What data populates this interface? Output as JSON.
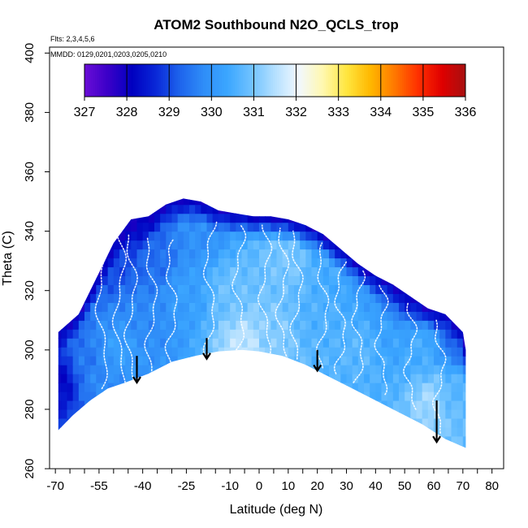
{
  "chart_data": {
    "type": "heatmap",
    "title": "ATOM2 Southbound N2O_QCLS_trop",
    "flights_note": "Flts: 2,3,4,5,6",
    "dates_note": "MMDD: 0129,0201,0203,0205,0210",
    "xlabel": "Latitude (deg N)",
    "ylabel": "Theta (C)",
    "xlim": [
      -72,
      84
    ],
    "ylim": [
      260,
      402
    ],
    "x_ticks_minor": [
      -70,
      -65,
      -60,
      -55,
      -50,
      -45,
      -40,
      -35,
      -30,
      -25,
      -20,
      -15,
      -10,
      -5,
      0,
      5,
      10,
      15,
      20,
      25,
      30,
      35,
      40,
      45,
      50,
      55,
      60,
      65,
      70,
      75,
      80
    ],
    "x_tick_labels": [
      "-70",
      "-55",
      "-40",
      "-25",
      "-10",
      "0",
      "10",
      "20",
      "30",
      "40",
      "50",
      "60",
      "70",
      "80"
    ],
    "x_tick_label_values": [
      -70,
      -55,
      -40,
      -25,
      -10,
      0,
      10,
      20,
      30,
      40,
      50,
      60,
      70,
      80
    ],
    "y_ticks": [
      260,
      280,
      300,
      320,
      340,
      360,
      380,
      400
    ],
    "y_tick_labels": [
      "260",
      "280",
      "300",
      "320",
      "340",
      "360",
      "380",
      "400"
    ],
    "colorbar": {
      "labels": [
        "327",
        "328",
        "329",
        "330",
        "331",
        "332",
        "333",
        "334",
        "335",
        "336"
      ],
      "min": 327,
      "max": 336,
      "colors": [
        "#6a0dd6",
        "#3a00c8",
        "#0000c0",
        "#0a28d8",
        "#1e64ec",
        "#2f8df8",
        "#3ba6ff",
        "#6fc2ff",
        "#b4e0ff",
        "#f2f8ff",
        "#fff8b0",
        "#ffe640",
        "#ffb800",
        "#ff7a00",
        "#ff3000",
        "#e00000",
        "#a81010"
      ]
    },
    "surface_boundary": {
      "lat": [
        -69,
        -64,
        -58,
        -52,
        -46,
        -38,
        -30,
        -22,
        -14,
        -6,
        0,
        8,
        16,
        24,
        32,
        40,
        48,
        56,
        64,
        71
      ],
      "theta": [
        273,
        278,
        283,
        287,
        289,
        292,
        296,
        298,
        299.5,
        300,
        299.5,
        298,
        295,
        291,
        287,
        283,
        279,
        275,
        270,
        267
      ]
    },
    "top_boundary": {
      "lat": [
        -69,
        -62,
        -56,
        -50,
        -44,
        -38,
        -32,
        -26,
        -20,
        -14,
        -8,
        -2,
        4,
        10,
        16,
        22,
        28,
        34,
        40,
        46,
        52,
        58,
        64,
        70,
        71
      ],
      "theta": [
        306,
        312,
        324,
        336,
        344,
        345,
        349,
        351,
        350,
        347,
        346,
        345,
        345,
        344,
        342,
        339,
        334,
        329,
        325,
        322,
        318,
        314,
        312,
        306,
        300
      ]
    },
    "field_control_points": [
      {
        "lat": -68,
        "theta": 290,
        "value": 328.2
      },
      {
        "lat": -60,
        "theta": 295,
        "value": 329.5
      },
      {
        "lat": -55,
        "theta": 290,
        "value": 329.8
      },
      {
        "lat": -48,
        "theta": 300,
        "value": 330.2
      },
      {
        "lat": -40,
        "theta": 310,
        "value": 329.8
      },
      {
        "lat": -35,
        "theta": 330,
        "value": 329.4
      },
      {
        "lat": -50,
        "theta": 330,
        "value": 329.0
      },
      {
        "lat": -45,
        "theta": 343,
        "value": 328.2
      },
      {
        "lat": -25,
        "theta": 320,
        "value": 330.2
      },
      {
        "lat": -20,
        "theta": 340,
        "value": 329.9
      },
      {
        "lat": -10,
        "theta": 320,
        "value": 330.9
      },
      {
        "lat": -5,
        "theta": 302,
        "value": 331.6
      },
      {
        "lat": 5,
        "theta": 305,
        "value": 331.1
      },
      {
        "lat": 10,
        "theta": 330,
        "value": 331.0
      },
      {
        "lat": 20,
        "theta": 310,
        "value": 330.6
      },
      {
        "lat": 25,
        "theta": 330,
        "value": 330.5
      },
      {
        "lat": 35,
        "theta": 300,
        "value": 330.7
      },
      {
        "lat": 45,
        "theta": 305,
        "value": 330.3
      },
      {
        "lat": 55,
        "theta": 300,
        "value": 330.5
      },
      {
        "lat": 60,
        "theta": 283,
        "value": 331.4
      },
      {
        "lat": 65,
        "theta": 285,
        "value": 330.7
      },
      {
        "lat": 68,
        "theta": 303,
        "value": 329.4
      },
      {
        "lat": 50,
        "theta": 316,
        "value": 329.2
      },
      {
        "lat": 30,
        "theta": 338,
        "value": 329.2
      }
    ],
    "top_edge_value": 328.0,
    "profiles": [
      {
        "lat": -54,
        "theta_min": 287,
        "theta_max": 341
      },
      {
        "lat": -48,
        "theta_min": 288,
        "theta_max": 342
      },
      {
        "lat": -44,
        "theta_min": 290,
        "theta_max": 339
      },
      {
        "lat": -37,
        "theta_min": 292,
        "theta_max": 338
      },
      {
        "lat": -30,
        "theta_min": 296,
        "theta_max": 337
      },
      {
        "lat": -17,
        "theta_min": 299,
        "theta_max": 343
      },
      {
        "lat": -7,
        "theta_min": 300,
        "theta_max": 342
      },
      {
        "lat": 2,
        "theta_min": 299,
        "theta_max": 342
      },
      {
        "lat": 8,
        "theta_min": 298,
        "theta_max": 341
      },
      {
        "lat": 13,
        "theta_min": 297,
        "theta_max": 340
      },
      {
        "lat": 22,
        "theta_min": 294,
        "theta_max": 336
      },
      {
        "lat": 28,
        "theta_min": 292,
        "theta_max": 330
      },
      {
        "lat": 34,
        "theta_min": 289,
        "theta_max": 327
      },
      {
        "lat": 42,
        "theta_min": 285,
        "theta_max": 322
      },
      {
        "lat": 52,
        "theta_min": 280,
        "theta_max": 316
      },
      {
        "lat": 62,
        "theta_min": 272,
        "theta_max": 310
      }
    ],
    "arrows": [
      {
        "lat": -42,
        "theta_top": 298,
        "theta_tip": 289
      },
      {
        "lat": -18,
        "theta_top": 304,
        "theta_tip": 297
      },
      {
        "lat": 20,
        "theta_top": 300,
        "theta_tip": 293
      },
      {
        "lat": 61,
        "theta_top": 283,
        "theta_tip": 269
      }
    ]
  }
}
